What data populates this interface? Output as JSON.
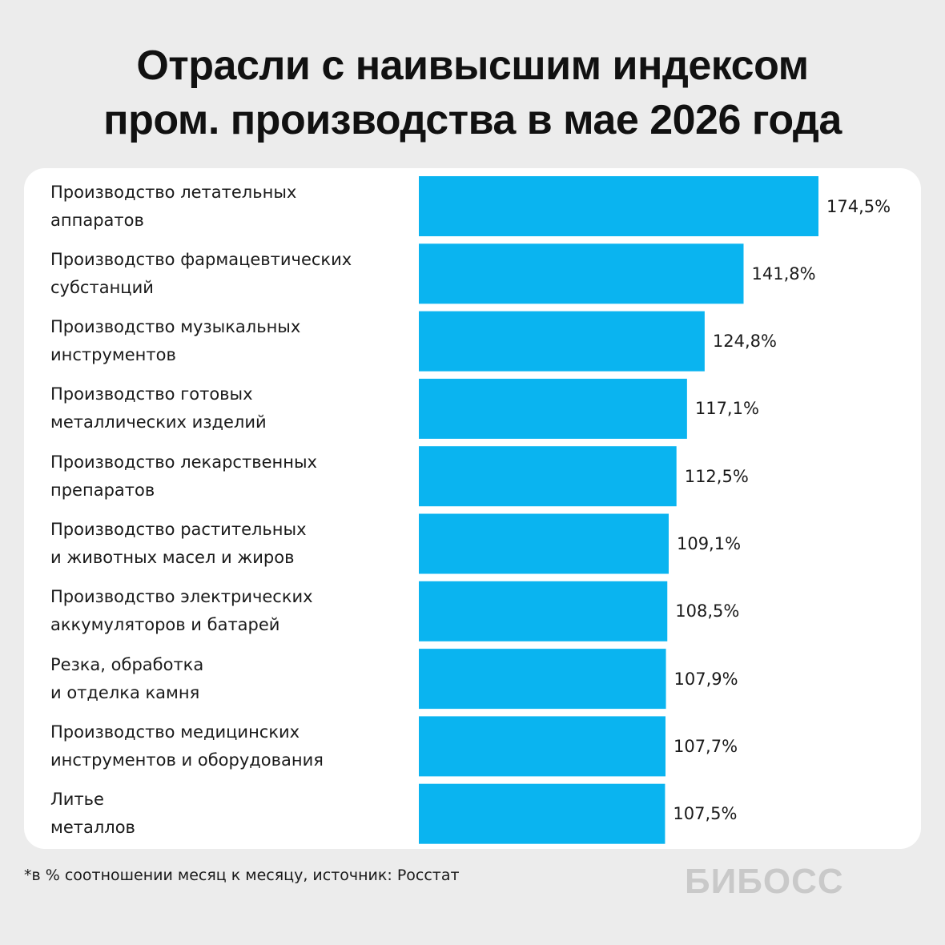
{
  "chart_data": {
    "type": "barh",
    "title": "Отрасли с наивысшим индексом\nпром. производства в мае 2026 года",
    "categories": [
      "Производство летательных\nаппаратов",
      "Производство фармацевтических\nсубстанций",
      "Производство музыкальных\nинструментов",
      "Производство готовых\nметаллических изделий",
      "Производство лекарственных\nпрепаратов",
      "Производство растительных\nи животных масел и жиров",
      "Производство электрических\nаккумуляторов и батарей",
      "Резка, обработка\nи отделка камня",
      "Производство медицинских\nинструментов и оборудования",
      "Литье\nметаллов"
    ],
    "values": [
      174.5,
      141.8,
      124.8,
      117.1,
      112.5,
      109.1,
      108.5,
      107.9,
      107.7,
      107.5
    ],
    "value_labels": [
      "174,5%",
      "141,8%",
      "124,8%",
      "117,1%",
      "112,5%",
      "109,1%",
      "108,5%",
      "107,9%",
      "107,7%",
      "107,5%"
    ],
    "color": "#0ab4f0",
    "xlim": [
      0,
      174.5
    ],
    "footnote": "*в % соотношении месяц к месяцу, источник: Росстат",
    "logo": "БИБОСС"
  }
}
